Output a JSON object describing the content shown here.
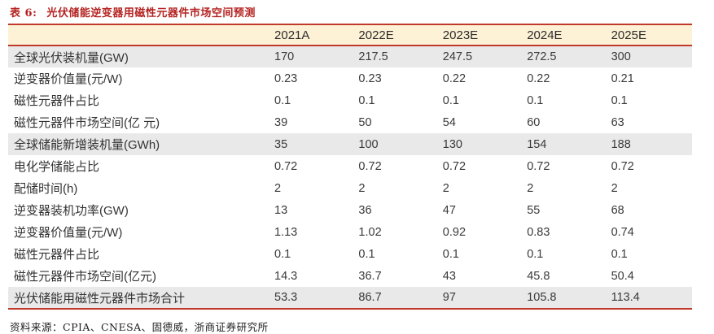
{
  "title": {
    "label": "表 6:",
    "text": "光伏储能逆变器用磁性元器件市场空间预测"
  },
  "table": {
    "columns": [
      "",
      "2021A",
      "2022E",
      "2023E",
      "2024E",
      "2025E"
    ],
    "rows": [
      {
        "label": "全球光伏装机量(GW)",
        "values": [
          "170",
          "217.5",
          "247.5",
          "272.5",
          "300"
        ],
        "highlight": true
      },
      {
        "label": "逆变器价值量(元/W)",
        "values": [
          "0.23",
          "0.23",
          "0.22",
          "0.22",
          "0.21"
        ],
        "highlight": false
      },
      {
        "label": "磁性元器件占比",
        "values": [
          "0.1",
          "0.1",
          "0.1",
          "0.1",
          "0.1"
        ],
        "highlight": false
      },
      {
        "label": "磁性元器件市场空间(亿 元)",
        "values": [
          "39",
          "50",
          "54",
          "60",
          "63"
        ],
        "highlight": false
      },
      {
        "label": "全球储能新增装机量(GWh)",
        "values": [
          "35",
          "100",
          "130",
          "154",
          "188"
        ],
        "highlight": true
      },
      {
        "label": "电化学储能占比",
        "values": [
          "0.72",
          "0.72",
          "0.72",
          "0.72",
          "0.72"
        ],
        "highlight": false
      },
      {
        "label": "配储时间(h)",
        "values": [
          "2",
          "2",
          "2",
          "2",
          "2"
        ],
        "highlight": false
      },
      {
        "label": "逆变器装机功率(GW)",
        "values": [
          "13",
          "36",
          "47",
          "55",
          "68"
        ],
        "highlight": false
      },
      {
        "label": "逆变器价值量(元/W)",
        "values": [
          "1.13",
          "1.02",
          "0.92",
          "0.83",
          "0.74"
        ],
        "highlight": false
      },
      {
        "label": "磁性元器件占比",
        "values": [
          "0.1",
          "0.1",
          "0.1",
          "0.1",
          "0.1"
        ],
        "highlight": false
      },
      {
        "label": "磁性元器件市场空间(亿元)",
        "values": [
          "14.3",
          "36.7",
          "43",
          "45.8",
          "50.4"
        ],
        "highlight": false
      },
      {
        "label": "光伏储能用磁性元器件市场合计",
        "values": [
          "53.3",
          "86.7",
          "97",
          "105.8",
          "113.4"
        ],
        "highlight": true
      }
    ]
  },
  "footer": {
    "source_label": "资料来源：",
    "source_text": "CPIA、CNESA、固德威，浙商证券研究所"
  },
  "colors": {
    "accent_red": "#c0392b",
    "title_red": "#b42220",
    "header_bg": "#fdf2d5",
    "highlight_row_bg": "#e9e9e9"
  }
}
